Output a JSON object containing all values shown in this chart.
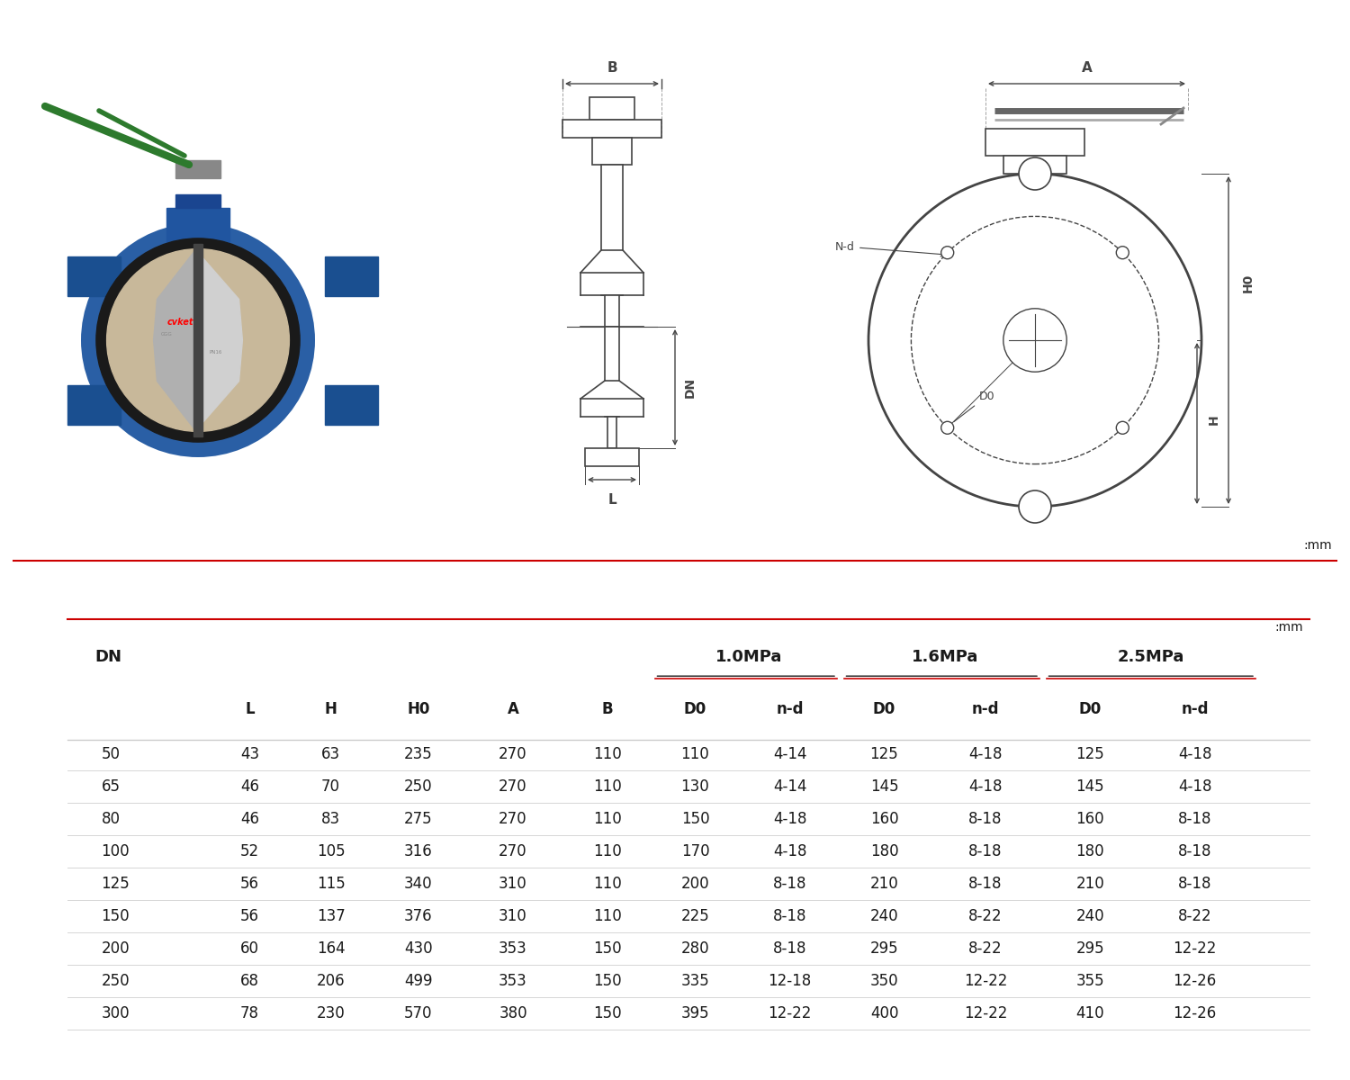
{
  "unit_label": ":mm",
  "table_data": [
    [
      "50",
      "43",
      "63",
      "235",
      "270",
      "110",
      "110",
      "4-14",
      "125",
      "4-18",
      "125",
      "4-18"
    ],
    [
      "65",
      "46",
      "70",
      "250",
      "270",
      "110",
      "130",
      "4-14",
      "145",
      "4-18",
      "145",
      "4-18"
    ],
    [
      "80",
      "46",
      "83",
      "275",
      "270",
      "110",
      "150",
      "4-18",
      "160",
      "8-18",
      "160",
      "8-18"
    ],
    [
      "100",
      "52",
      "105",
      "316",
      "270",
      "110",
      "170",
      "4-18",
      "180",
      "8-18",
      "180",
      "8-18"
    ],
    [
      "125",
      "56",
      "115",
      "340",
      "310",
      "110",
      "200",
      "8-18",
      "210",
      "8-18",
      "210",
      "8-18"
    ],
    [
      "150",
      "56",
      "137",
      "376",
      "310",
      "110",
      "225",
      "8-18",
      "240",
      "8-22",
      "240",
      "8-22"
    ],
    [
      "200",
      "60",
      "164",
      "430",
      "353",
      "150",
      "280",
      "8-18",
      "295",
      "8-22",
      "295",
      "12-22"
    ],
    [
      "250",
      "68",
      "206",
      "499",
      "353",
      "150",
      "335",
      "12-18",
      "350",
      "12-22",
      "355",
      "12-26"
    ],
    [
      "300",
      "78",
      "230",
      "570",
      "380",
      "150",
      "395",
      "12-22",
      "400",
      "12-22",
      "410",
      "12-26"
    ]
  ],
  "text_color": "#1a1a1a",
  "line_color": "#cccccc",
  "red_line_color": "#cc0000",
  "body_blue": "#2a5fa5",
  "handle_green": "#2d7a2d",
  "drawing_gray": "#444444",
  "lug_blue": "#1a4f90"
}
